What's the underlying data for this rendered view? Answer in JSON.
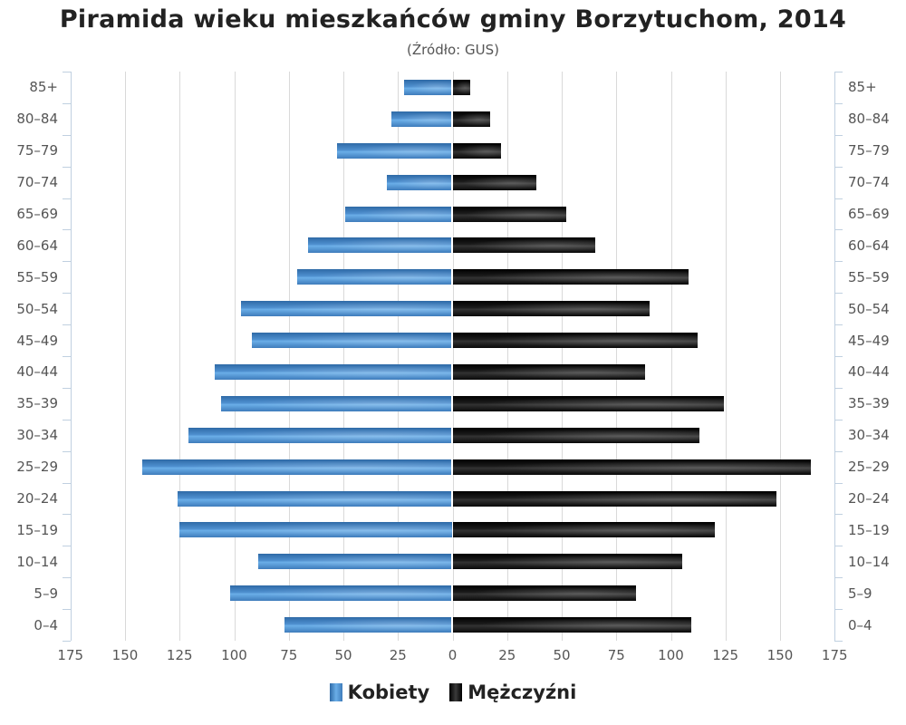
{
  "chart_data": {
    "type": "bar",
    "orientation": "horizontal",
    "subtype": "population-pyramid",
    "title": "Piramida wieku mieszkańców gminy Borzytuchom, 2014",
    "subtitle": "(Źródło: GUS)",
    "xlabel": "",
    "ylabel": "",
    "xlim": [
      -175,
      175
    ],
    "x_ticks": [
      "175",
      "150",
      "125",
      "100",
      "75",
      "50",
      "25",
      "0",
      "25",
      "50",
      "75",
      "100",
      "125",
      "150",
      "175"
    ],
    "grid": true,
    "legend_position": "bottom",
    "categories": [
      "85+",
      "80-84",
      "75-79",
      "70-74",
      "65-69",
      "60-64",
      "55-59",
      "50-54",
      "45-49",
      "40-44",
      "35-39",
      "30-34",
      "25-29",
      "20-24",
      "15-19",
      "10-14",
      "5-9",
      "0-4"
    ],
    "series": [
      {
        "name": "Kobiety",
        "color": "#4a86c5",
        "side": "left",
        "values": [
          22,
          28,
          53,
          30,
          49,
          66,
          71,
          97,
          92,
          109,
          106,
          121,
          142,
          126,
          125,
          89,
          102,
          77
        ]
      },
      {
        "name": "Mężczyźni",
        "color": "#111111",
        "side": "right",
        "values": [
          8,
          17,
          22,
          38,
          52,
          65,
          108,
          90,
          112,
          88,
          124,
          113,
          164,
          148,
          120,
          105,
          84,
          109
        ]
      }
    ]
  },
  "legend": {
    "female": "Kobiety",
    "male": "Mężczyźni"
  }
}
